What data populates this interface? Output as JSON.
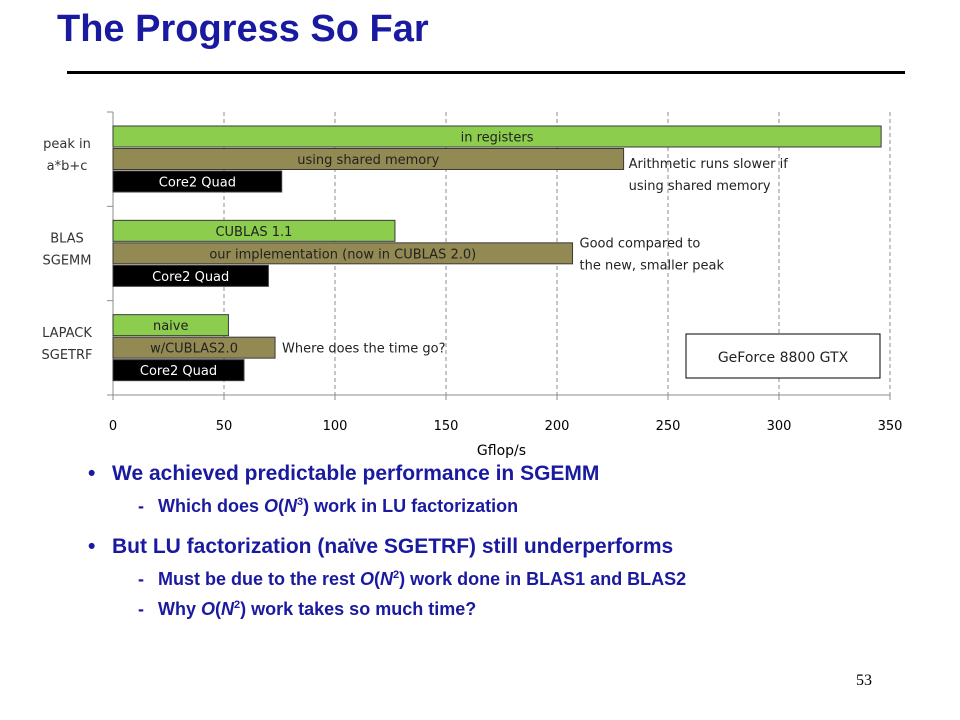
{
  "slide": {
    "title": "The Progress So Far",
    "page_number": "53"
  },
  "colors": {
    "title": "#1a1aa0",
    "green": "#8ccd4e",
    "olive": "#938953",
    "black": "#000000"
  },
  "chart_data": {
    "type": "bar",
    "orientation": "horizontal",
    "xlabel": "Gflop/s",
    "xlim": [
      0,
      350
    ],
    "xticks": [
      0,
      50,
      100,
      150,
      200,
      250,
      300,
      350
    ],
    "grid": "vertical dashed",
    "groups": [
      {
        "label": [
          "peak in",
          "a*b+c"
        ],
        "bars": [
          {
            "label": "in registers",
            "value": 346,
            "color": "green"
          },
          {
            "label": "using shared memory",
            "value": 230,
            "color": "olive"
          },
          {
            "label": "Core2 Quad",
            "value": 76,
            "color": "black"
          }
        ],
        "annotation": [
          "Arithmetic runs slower if",
          "using shared memory"
        ]
      },
      {
        "label": [
          "BLAS",
          "SGEMM"
        ],
        "bars": [
          {
            "label": "CUBLAS 1.1",
            "value": 127,
            "color": "green"
          },
          {
            "label": "our implementation (now in CUBLAS 2.0)",
            "value": 207,
            "color": "olive"
          },
          {
            "label": "Core2 Quad",
            "value": 70,
            "color": "black"
          }
        ],
        "annotation": [
          "Good compared to",
          "the new, smaller peak"
        ]
      },
      {
        "label": [
          "LAPACK",
          "SGETRF"
        ],
        "bars": [
          {
            "label": "naive",
            "value": 52,
            "color": "green"
          },
          {
            "label": "w/CUBLAS2.0",
            "value": 73,
            "color": "olive"
          },
          {
            "label": "Core2 Quad",
            "value": 59,
            "color": "black"
          }
        ],
        "annotation": [
          "Where does the time go?"
        ]
      }
    ],
    "boxed_note": "GeForce 8800 GTX"
  },
  "bullets": [
    {
      "text": "We achieved predictable performance in SGEMM",
      "subs": [
        {
          "pre": "Which does ",
          "big_o": "O",
          "paren_open": "(",
          "var": "N",
          "exp": "3",
          "post": ") work in LU factorization"
        }
      ]
    },
    {
      "text": "But LU factorization (naïve SGETRF) still underperforms",
      "subs": [
        {
          "pre": "Must be due to the rest ",
          "big_o": "O",
          "paren_open": "(",
          "var": "N",
          "exp": "2",
          "post": ") work done in BLAS1 and BLAS2"
        },
        {
          "pre": "Why ",
          "big_o": "O",
          "paren_open": "(",
          "var": "N",
          "exp": "2",
          "post": ") work takes so much time?"
        }
      ]
    }
  ]
}
